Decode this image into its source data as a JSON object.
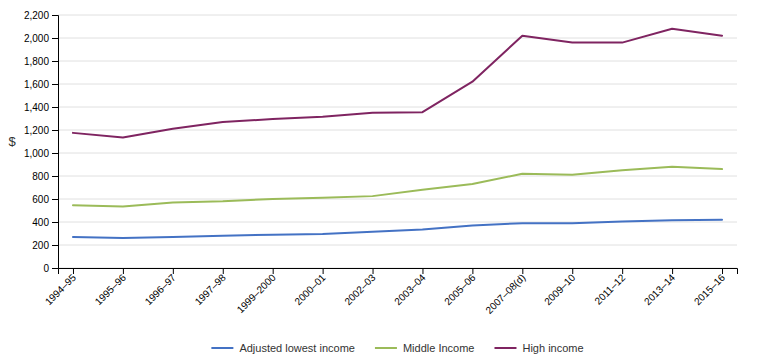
{
  "chart_data": {
    "type": "line",
    "categories": [
      "1994–95",
      "1995–96",
      "1996–97",
      "1997–98",
      "1999–2000",
      "2000–01",
      "2002–03",
      "2003–04",
      "2005–06",
      "2007–08(d)",
      "2009–10",
      "2011–12",
      "2013–14",
      "2015–16"
    ],
    "series": [
      {
        "name": "Adjusted lowest income",
        "color": "#4472C4",
        "values": [
          270,
          260,
          270,
          280,
          290,
          295,
          315,
          335,
          370,
          390,
          390,
          405,
          415,
          420
        ]
      },
      {
        "name": "Middle Income",
        "color": "#9BBB59",
        "values": [
          545,
          535,
          570,
          580,
          600,
          610,
          625,
          680,
          730,
          820,
          810,
          850,
          880,
          860
        ]
      },
      {
        "name": "High income",
        "color": "#7F2461",
        "values": [
          1175,
          1135,
          1210,
          1270,
          1295,
          1315,
          1350,
          1355,
          1620,
          2020,
          1960,
          1960,
          2080,
          2020
        ]
      }
    ],
    "y_label": "$",
    "ylim": [
      0,
      2200
    ],
    "yticks": [
      0,
      200,
      400,
      600,
      800,
      {
        "value": 1000,
        "label": "1,000"
      },
      {
        "value": 1200,
        "label": "1,200"
      },
      {
        "value": 1400,
        "label": "1,400"
      },
      {
        "value": 1600,
        "label": "1,600"
      },
      {
        "value": 1800,
        "label": "1,800"
      },
      {
        "value": 2000,
        "label": "2,000"
      },
      {
        "value": 2200,
        "label": "2,200"
      }
    ],
    "grid": true,
    "legend": "bottom"
  }
}
